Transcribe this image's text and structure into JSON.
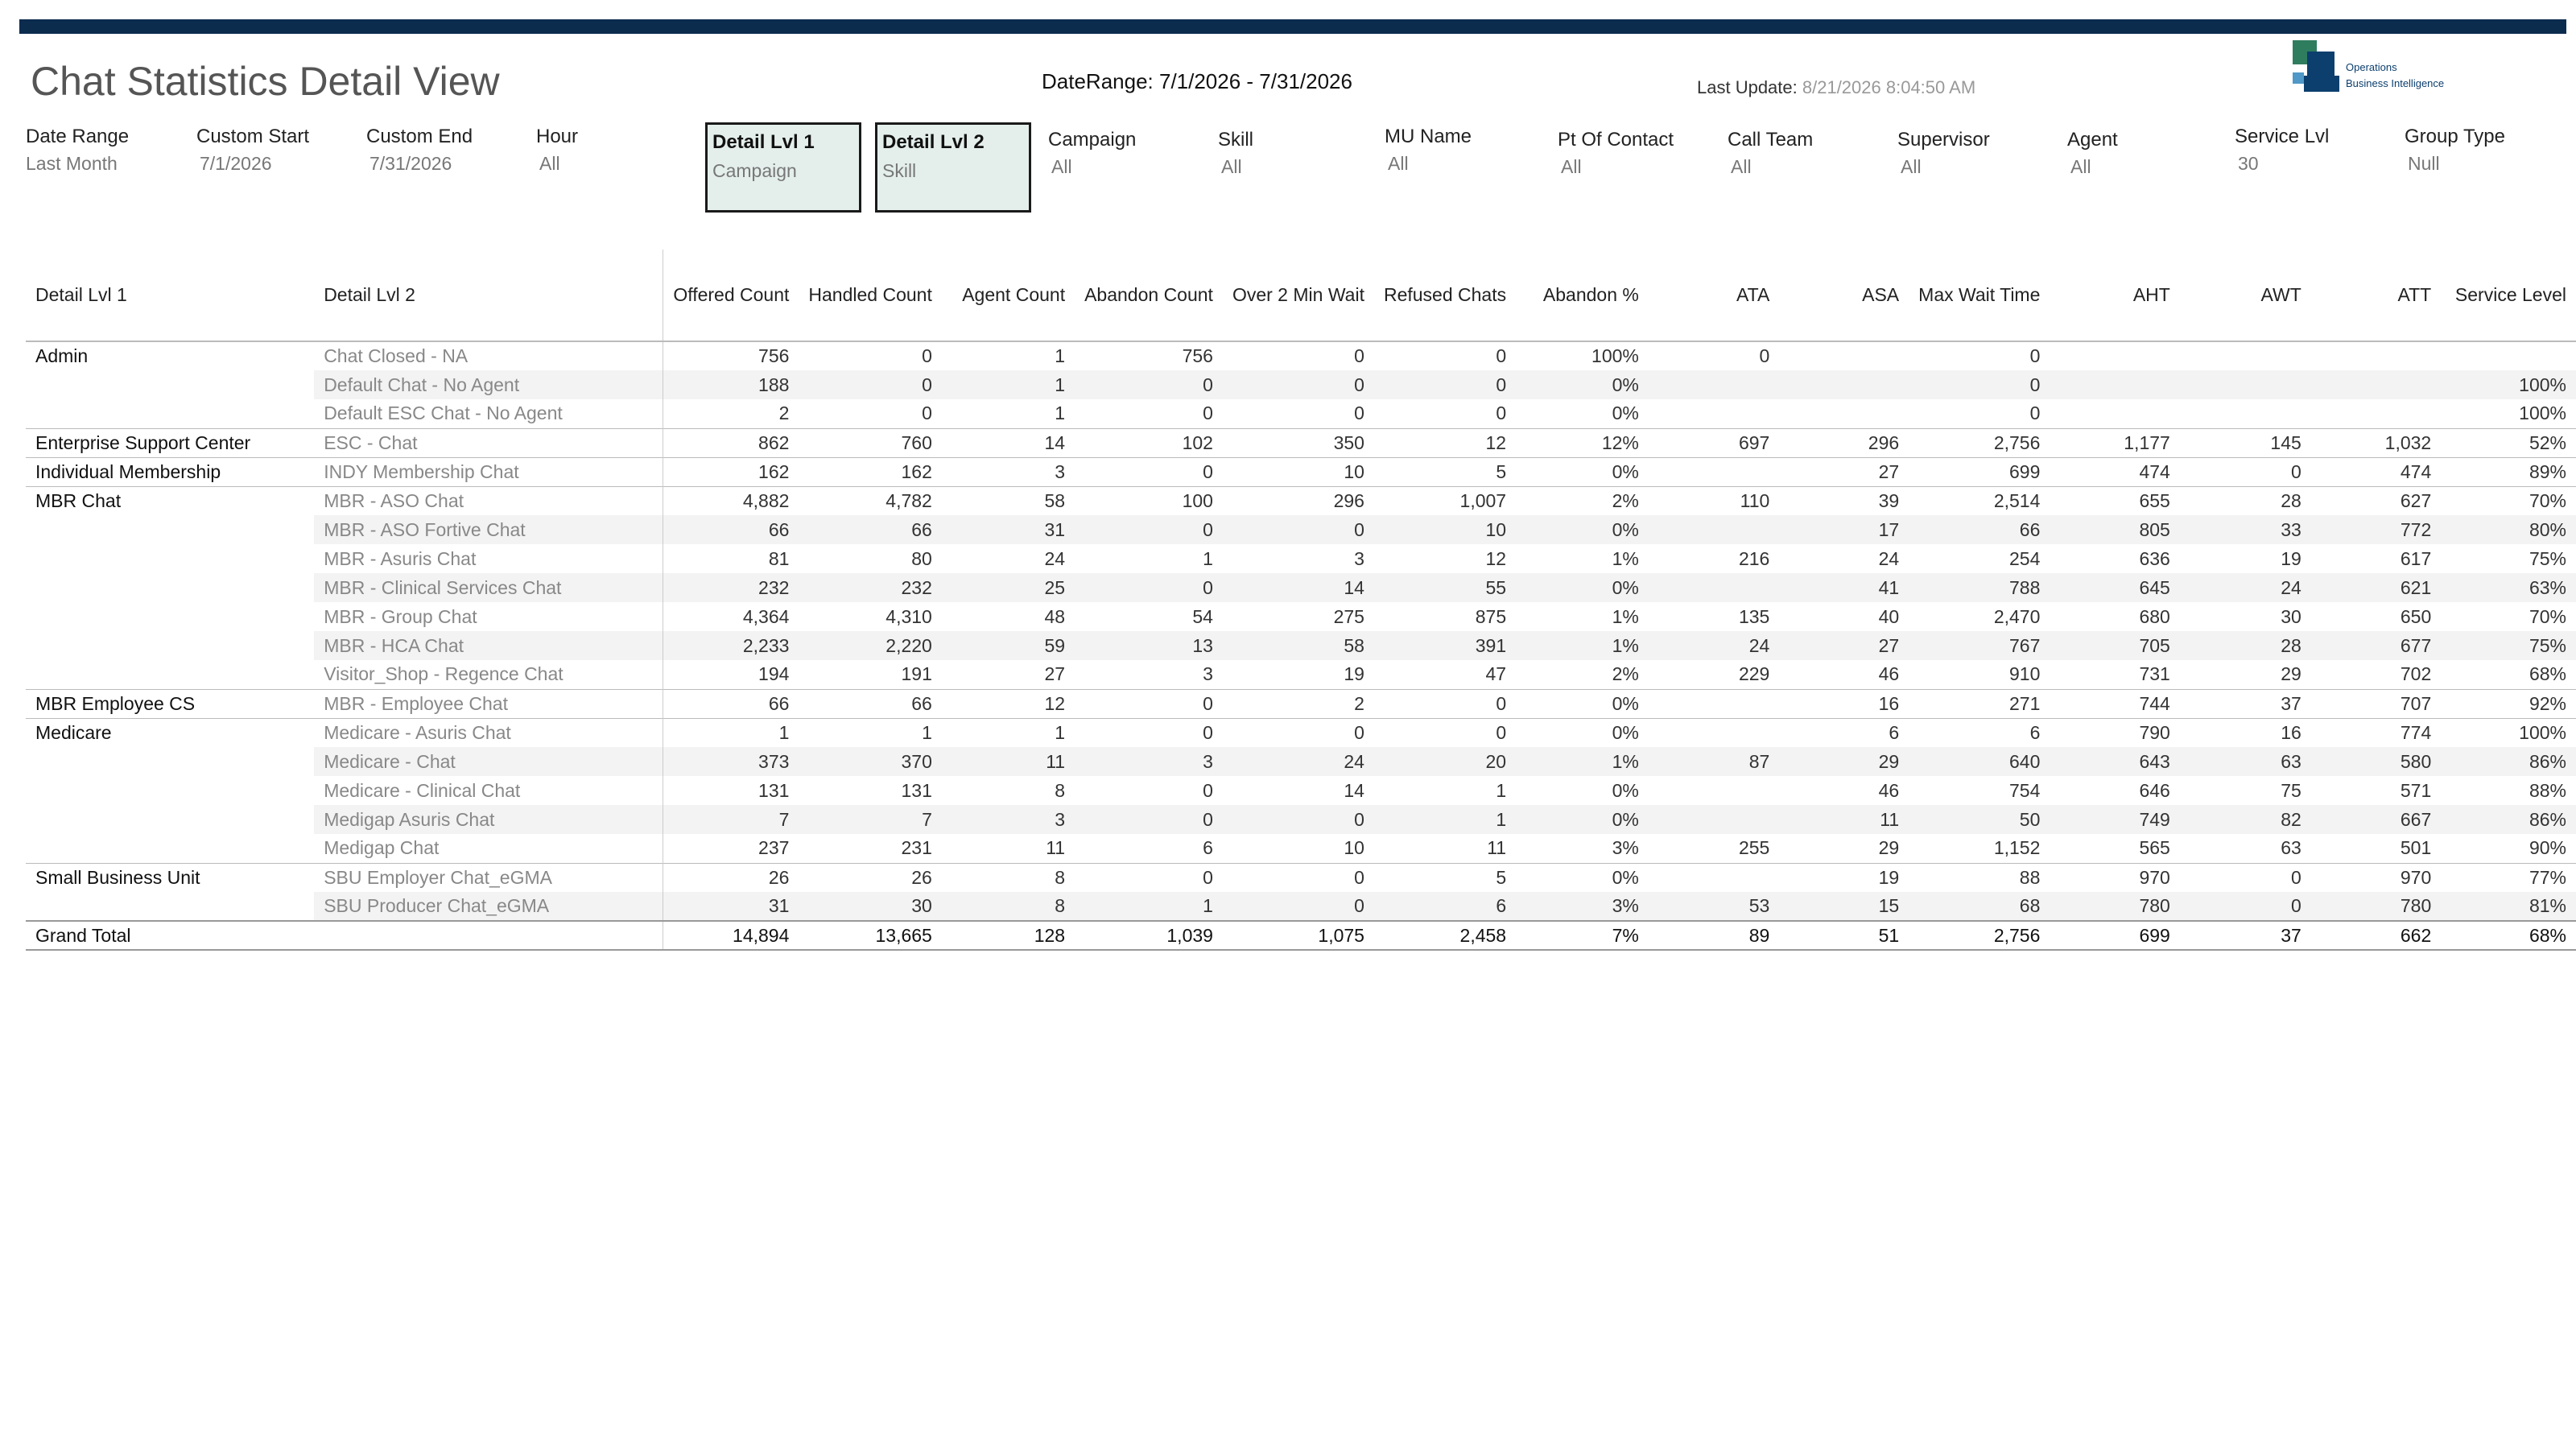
{
  "header": {
    "title": "Chat Statistics Detail View",
    "date_range": "DateRange: 7/1/2026 - 7/31/2026",
    "last_update_label": "Last Update:",
    "last_update_value": "8/21/2026 8:04:50 AM",
    "logo_line1": "Operations",
    "logo_line2": "Business Intelligence"
  },
  "colors": {
    "top_bar": "#0c2c4e",
    "filter_box_fill": "#e4efec",
    "logo_green": "#2f7d5f",
    "logo_navy": "#0c3f6e"
  },
  "filters": {
    "date_range": {
      "label": "Date Range",
      "value": "Last Month"
    },
    "custom_start": {
      "label": "Custom Start",
      "value": "7/1/2026"
    },
    "custom_end": {
      "label": "Custom End",
      "value": "7/31/2026"
    },
    "hour": {
      "label": "Hour",
      "value": "All"
    },
    "detail_lvl1": {
      "label": "Detail Lvl 1",
      "value": "Campaign"
    },
    "detail_lvl2": {
      "label": "Detail Lvl 2",
      "value": "Skill"
    },
    "campaign": {
      "label": "Campaign",
      "value": "All"
    },
    "skill": {
      "label": "Skill",
      "value": "All"
    },
    "mu_name": {
      "label": "MU Name",
      "value": "All"
    },
    "pt_of_contact": {
      "label": "Pt Of Contact",
      "value": "All"
    },
    "call_team": {
      "label": "Call Team",
      "value": "All"
    },
    "supervisor": {
      "label": "Supervisor",
      "value": "All"
    },
    "agent": {
      "label": "Agent",
      "value": "All"
    },
    "service_lvl": {
      "label": "Service Lvl",
      "value": "30"
    },
    "group_type": {
      "label": "Group Type",
      "value": "Null"
    }
  },
  "table": {
    "columns": [
      "Detail Lvl 1",
      "Detail Lvl 2",
      "Offered Count",
      "Handled Count",
      "Agent Count",
      "Abandon Count",
      "Over 2 Min Wait",
      "Refused Chats",
      "Abandon %",
      "ATA",
      "ASA",
      "Max Wait Time",
      "AHT",
      "AWT",
      "ATT",
      "Service Level"
    ],
    "rows": [
      [
        "Admin",
        "Chat Closed - NA",
        "756",
        "0",
        "1",
        "756",
        "0",
        "0",
        "100%",
        "0",
        "",
        "0",
        "",
        "",
        "",
        ""
      ],
      [
        "",
        "Default Chat - No Agent",
        "188",
        "0",
        "1",
        "0",
        "0",
        "0",
        "0%",
        "",
        "",
        "0",
        "",
        "",
        "",
        "100%"
      ],
      [
        "",
        "Default ESC Chat - No Agent",
        "2",
        "0",
        "1",
        "0",
        "0",
        "0",
        "0%",
        "",
        "",
        "0",
        "",
        "",
        "",
        "100%"
      ],
      [
        "Enterprise Support Center",
        "ESC - Chat",
        "862",
        "760",
        "14",
        "102",
        "350",
        "12",
        "12%",
        "697",
        "296",
        "2,756",
        "1,177",
        "145",
        "1,032",
        "52%"
      ],
      [
        "Individual Membership",
        "INDY Membership Chat",
        "162",
        "162",
        "3",
        "0",
        "10",
        "5",
        "0%",
        "",
        "27",
        "699",
        "474",
        "0",
        "474",
        "89%"
      ],
      [
        "MBR Chat",
        "MBR - ASO Chat",
        "4,882",
        "4,782",
        "58",
        "100",
        "296",
        "1,007",
        "2%",
        "110",
        "39",
        "2,514",
        "655",
        "28",
        "627",
        "70%"
      ],
      [
        "",
        "MBR - ASO Fortive Chat",
        "66",
        "66",
        "31",
        "0",
        "0",
        "10",
        "0%",
        "",
        "17",
        "66",
        "805",
        "33",
        "772",
        "80%"
      ],
      [
        "",
        "MBR - Asuris Chat",
        "81",
        "80",
        "24",
        "1",
        "3",
        "12",
        "1%",
        "216",
        "24",
        "254",
        "636",
        "19",
        "617",
        "75%"
      ],
      [
        "",
        "MBR - Clinical Services Chat",
        "232",
        "232",
        "25",
        "0",
        "14",
        "55",
        "0%",
        "",
        "41",
        "788",
        "645",
        "24",
        "621",
        "63%"
      ],
      [
        "",
        "MBR - Group Chat",
        "4,364",
        "4,310",
        "48",
        "54",
        "275",
        "875",
        "1%",
        "135",
        "40",
        "2,470",
        "680",
        "30",
        "650",
        "70%"
      ],
      [
        "",
        "MBR - HCA Chat",
        "2,233",
        "2,220",
        "59",
        "13",
        "58",
        "391",
        "1%",
        "24",
        "27",
        "767",
        "705",
        "28",
        "677",
        "75%"
      ],
      [
        "",
        "Visitor_Shop - Regence Chat",
        "194",
        "191",
        "27",
        "3",
        "19",
        "47",
        "2%",
        "229",
        "46",
        "910",
        "731",
        "29",
        "702",
        "68%"
      ],
      [
        "MBR Employee CS",
        "MBR - Employee Chat",
        "66",
        "66",
        "12",
        "0",
        "2",
        "0",
        "0%",
        "",
        "16",
        "271",
        "744",
        "37",
        "707",
        "92%"
      ],
      [
        "Medicare",
        "Medicare - Asuris Chat",
        "1",
        "1",
        "1",
        "0",
        "0",
        "0",
        "0%",
        "",
        "6",
        "6",
        "790",
        "16",
        "774",
        "100%"
      ],
      [
        "",
        "Medicare - Chat",
        "373",
        "370",
        "11",
        "3",
        "24",
        "20",
        "1%",
        "87",
        "29",
        "640",
        "643",
        "63",
        "580",
        "86%"
      ],
      [
        "",
        "Medicare - Clinical Chat",
        "131",
        "131",
        "8",
        "0",
        "14",
        "1",
        "0%",
        "",
        "46",
        "754",
        "646",
        "75",
        "571",
        "88%"
      ],
      [
        "",
        "Medigap Asuris Chat",
        "7",
        "7",
        "3",
        "0",
        "0",
        "1",
        "0%",
        "",
        "11",
        "50",
        "749",
        "82",
        "667",
        "86%"
      ],
      [
        "",
        "Medigap Chat",
        "237",
        "231",
        "11",
        "6",
        "10",
        "11",
        "3%",
        "255",
        "29",
        "1,152",
        "565",
        "63",
        "501",
        "90%"
      ],
      [
        "Small Business Unit",
        "SBU Employer Chat_eGMA",
        "26",
        "26",
        "8",
        "0",
        "0",
        "5",
        "0%",
        "",
        "19",
        "88",
        "970",
        "0",
        "970",
        "77%"
      ],
      [
        "",
        "SBU Producer Chat_eGMA",
        "31",
        "30",
        "8",
        "1",
        "0",
        "6",
        "3%",
        "53",
        "15",
        "68",
        "780",
        "0",
        "780",
        "81%"
      ]
    ],
    "grand_total": [
      "Grand Total",
      "",
      "14,894",
      "13,665",
      "128",
      "1,039",
      "1,075",
      "2,458",
      "7%",
      "89",
      "51",
      "2,756",
      "699",
      "37",
      "662",
      "68%"
    ]
  }
}
